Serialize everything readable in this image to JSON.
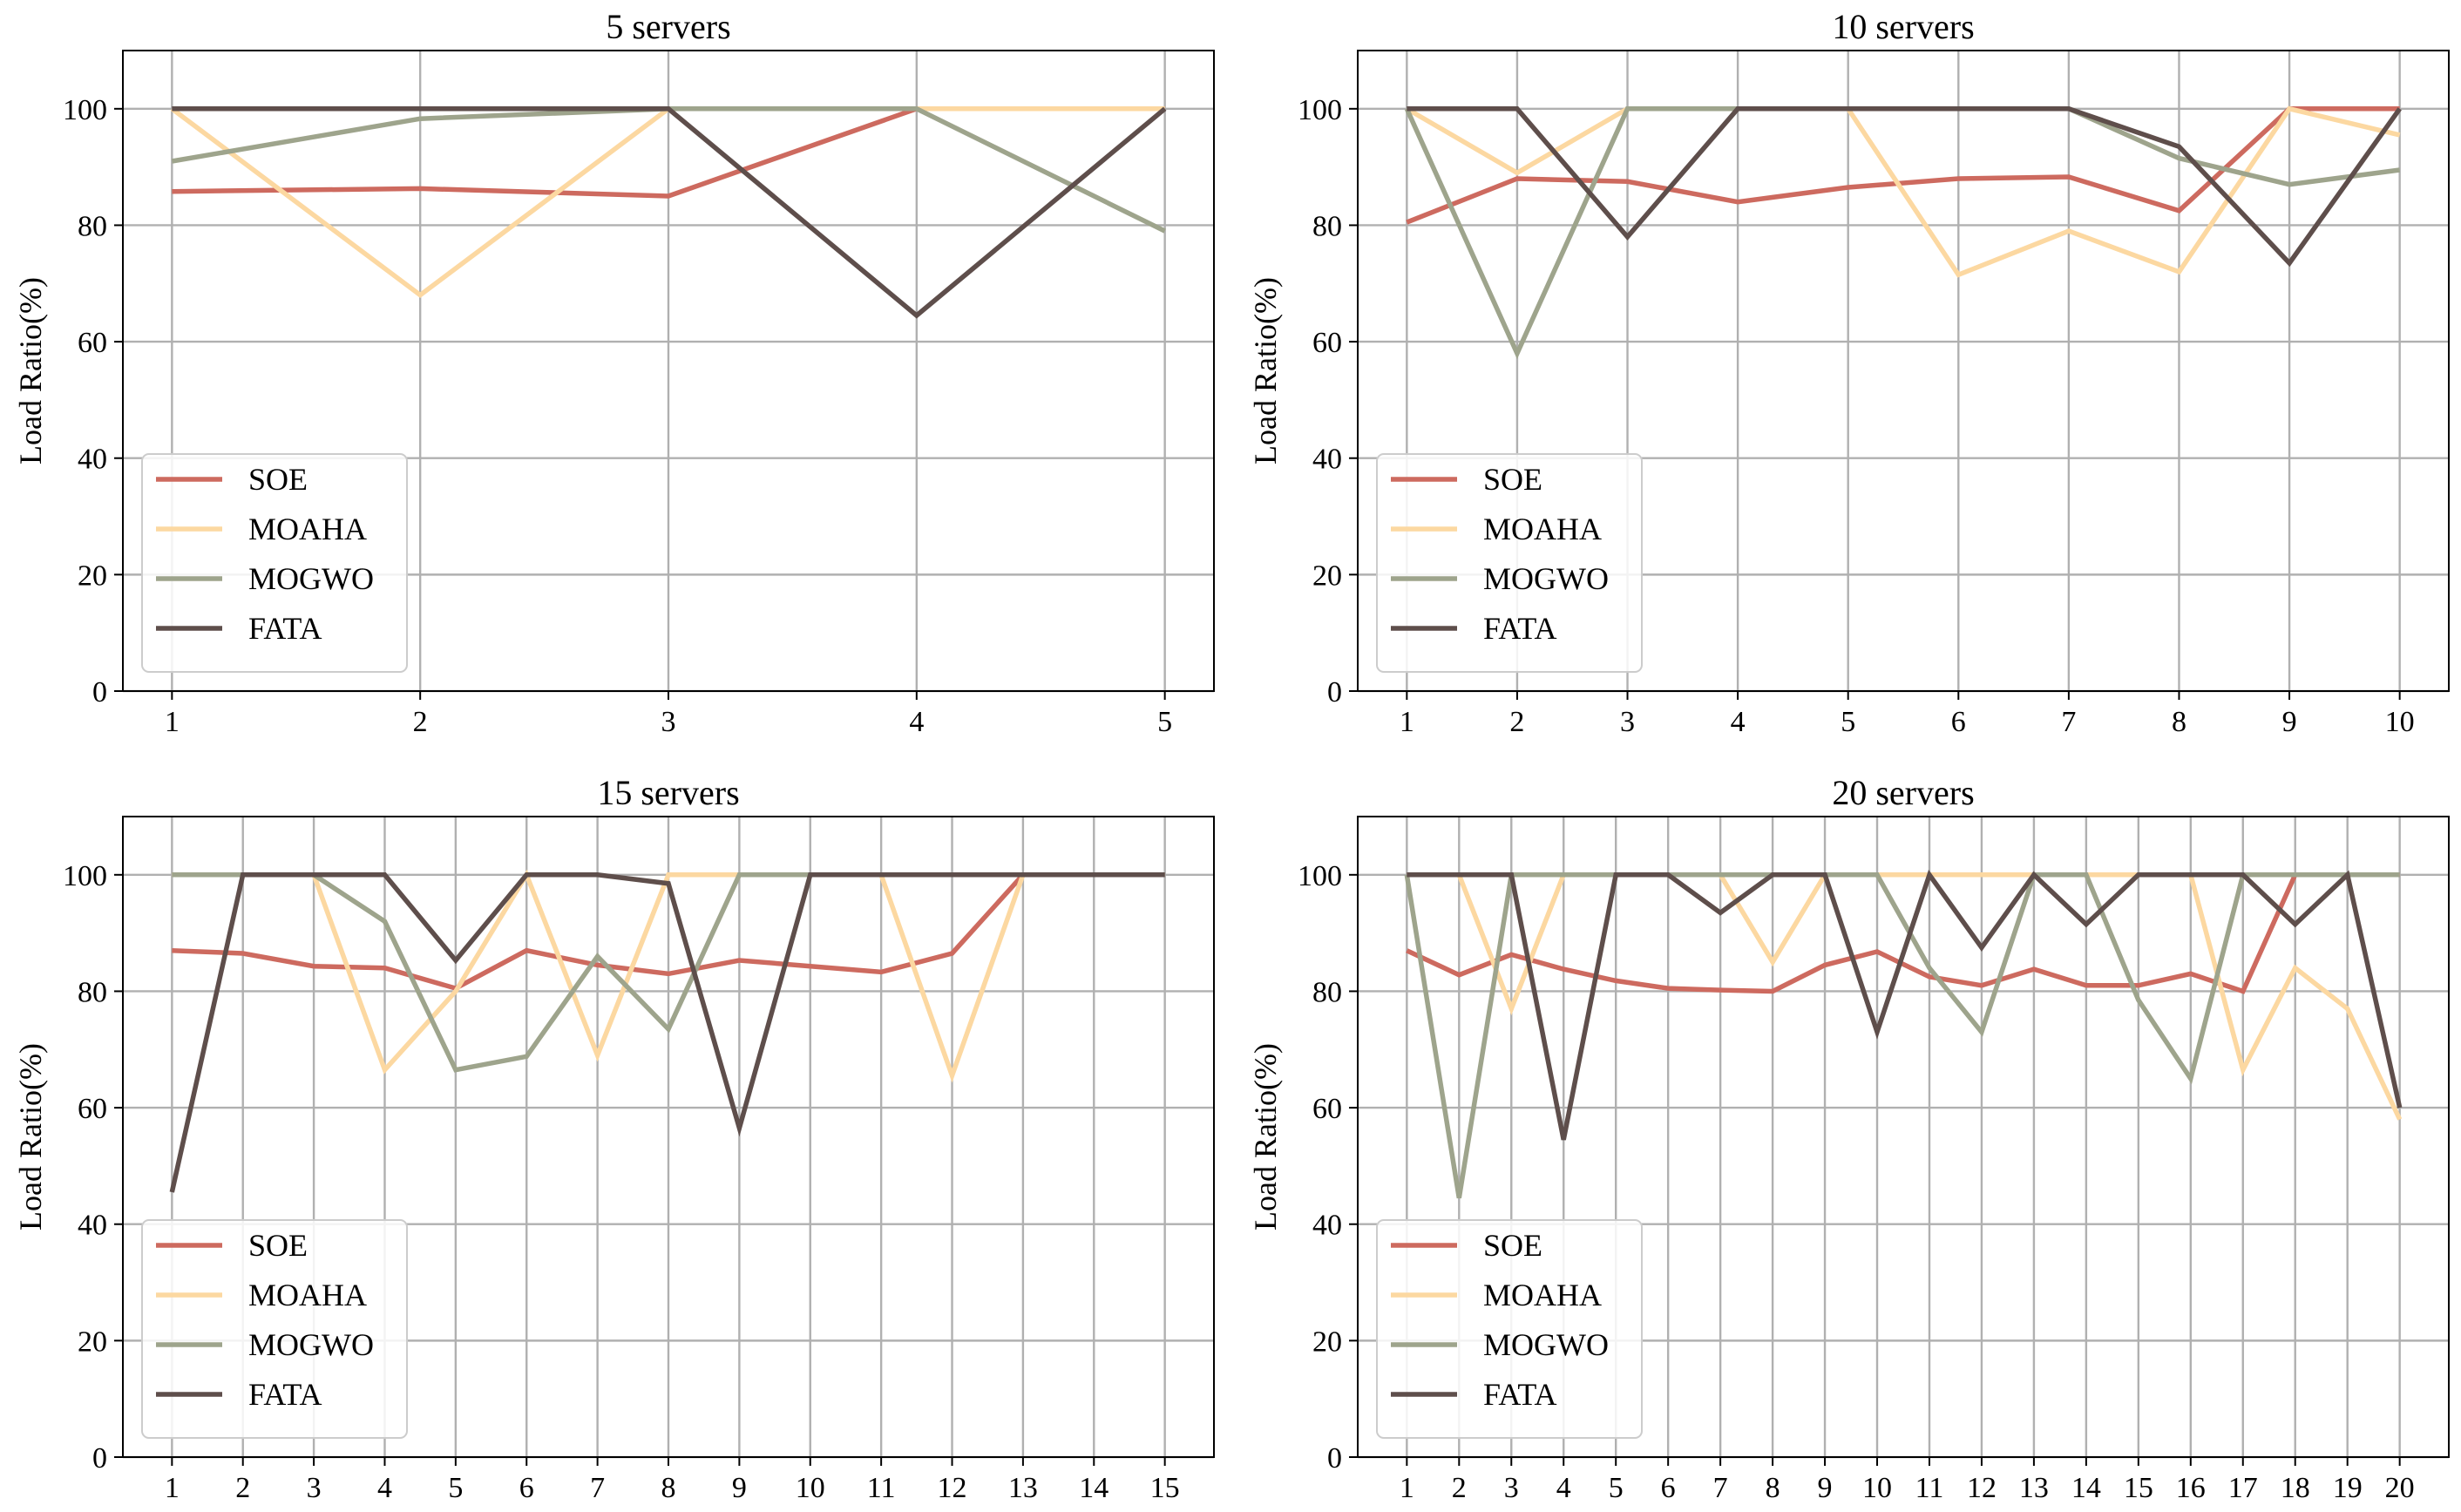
{
  "colors": {
    "SOE": "#cd6a5f",
    "MOAHA": "#fcd8a1",
    "MOGWO": "#9ea48c",
    "FATA": "#5e4e4b",
    "grid": "#b0b0b0",
    "axis": "#000000"
  },
  "chart_data": [
    {
      "type": "line",
      "title": "5 servers",
      "xlabel": "",
      "ylabel": "Load Ratio(%)",
      "x": [
        1,
        2,
        3,
        4,
        5
      ],
      "ylim": [
        0,
        110
      ],
      "yticks": [
        0,
        20,
        40,
        60,
        80,
        100
      ],
      "grid": true,
      "legend": "lower-left",
      "series": [
        {
          "name": "SOE",
          "values": [
            85.8,
            86.3,
            85,
            100,
            100
          ]
        },
        {
          "name": "MOAHA",
          "values": [
            100,
            68,
            100,
            100,
            100
          ]
        },
        {
          "name": "MOGWO",
          "values": [
            91,
            98.3,
            100,
            100,
            79
          ]
        },
        {
          "name": "FATA",
          "values": [
            100,
            100,
            100,
            64.5,
            100
          ]
        }
      ]
    },
    {
      "type": "line",
      "title": "10 servers",
      "xlabel": "",
      "ylabel": "Load Ratio(%)",
      "x": [
        1,
        2,
        3,
        4,
        5,
        6,
        7,
        8,
        9,
        10
      ],
      "ylim": [
        0,
        110
      ],
      "yticks": [
        0,
        20,
        40,
        60,
        80,
        100
      ],
      "grid": true,
      "legend": "lower-left",
      "series": [
        {
          "name": "SOE",
          "values": [
            80.5,
            88,
            87.5,
            84,
            86.5,
            88,
            88.3,
            82.5,
            100,
            100
          ]
        },
        {
          "name": "MOAHA",
          "values": [
            100,
            89,
            100,
            100,
            100,
            71.5,
            79,
            72,
            100,
            95.5
          ]
        },
        {
          "name": "MOGWO",
          "values": [
            100,
            58,
            100,
            100,
            100,
            100,
            100,
            91.5,
            87,
            89.5
          ]
        },
        {
          "name": "FATA",
          "values": [
            100,
            100,
            78,
            100,
            100,
            100,
            100,
            93.5,
            73.5,
            100
          ]
        }
      ]
    },
    {
      "type": "line",
      "title": "15 servers",
      "xlabel": "",
      "ylabel": "Load Ratio(%)",
      "x": [
        1,
        2,
        3,
        4,
        5,
        6,
        7,
        8,
        9,
        10,
        11,
        12,
        13,
        14,
        15
      ],
      "ylim": [
        0,
        110
      ],
      "yticks": [
        0,
        20,
        40,
        60,
        80,
        100
      ],
      "grid": true,
      "legend": "lower-left",
      "series": [
        {
          "name": "SOE",
          "values": [
            87,
            86.5,
            84.3,
            84,
            80.5,
            87,
            84.5,
            83,
            85.3,
            84.3,
            83.3,
            86.5,
            100,
            100,
            100
          ]
        },
        {
          "name": "MOAHA",
          "values": [
            100,
            100,
            100,
            66.5,
            80,
            100,
            69,
            100,
            100,
            100,
            100,
            65.5,
            100,
            100,
            100
          ]
        },
        {
          "name": "MOGWO",
          "values": [
            100,
            100,
            100,
            92,
            66.5,
            68.8,
            86,
            73.5,
            100,
            100,
            100,
            100,
            100,
            100,
            100
          ]
        },
        {
          "name": "FATA",
          "values": [
            45.5,
            100,
            100,
            100,
            85.3,
            100,
            100,
            98.5,
            56.5,
            100,
            100,
            100,
            100,
            100,
            100
          ]
        }
      ]
    },
    {
      "type": "line",
      "title": "20 servers",
      "xlabel": "",
      "ylabel": "Load Ratio(%)",
      "x": [
        1,
        2,
        3,
        4,
        5,
        6,
        7,
        8,
        9,
        10,
        11,
        12,
        13,
        14,
        15,
        16,
        17,
        18,
        19,
        20
      ],
      "ylim": [
        0,
        110
      ],
      "yticks": [
        0,
        20,
        40,
        60,
        80,
        100
      ],
      "grid": true,
      "legend": "lower-left",
      "series": [
        {
          "name": "SOE",
          "values": [
            87,
            82.8,
            86.3,
            83.8,
            81.8,
            80.5,
            80.2,
            80,
            84.5,
            86.8,
            82.5,
            81,
            83.8,
            81,
            81,
            83,
            80,
            100,
            100,
            100
          ]
        },
        {
          "name": "MOAHA",
          "values": [
            100,
            100,
            77,
            100,
            100,
            100,
            100,
            85,
            100,
            100,
            100,
            100,
            100,
            100,
            100,
            100,
            66.5,
            84,
            77,
            58
          ]
        },
        {
          "name": "MOGWO",
          "values": [
            100,
            44.5,
            100,
            100,
            100,
            100,
            100,
            100,
            100,
            100,
            84,
            73,
            100,
            100,
            78.5,
            65,
            100,
            100,
            100,
            100
          ]
        },
        {
          "name": "FATA",
          "values": [
            100,
            100,
            100,
            54.5,
            100,
            100,
            93.5,
            100,
            100,
            73,
            100,
            87.5,
            100,
            91.5,
            100,
            100,
            100,
            91.5,
            100,
            60
          ]
        }
      ]
    }
  ]
}
